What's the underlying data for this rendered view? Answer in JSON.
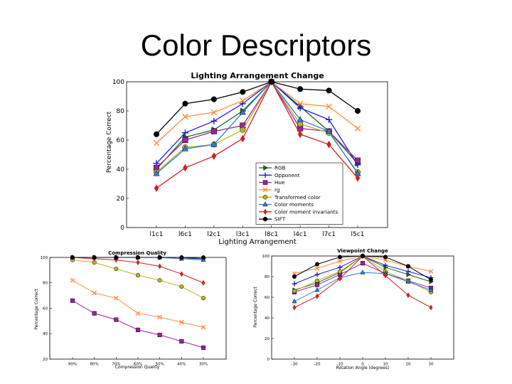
{
  "slide": {
    "title": "Color Descriptors"
  },
  "chart_data": [
    {
      "type": "line",
      "title": "Lighting Arrangement Change",
      "xlabel": "Lighting Arrangement",
      "ylabel": "Percentage Correct",
      "categories": [
        "l1c1",
        "l6c1",
        "l2c1",
        "l3c1",
        "l8c1",
        "l4c1",
        "l7c1",
        "l5c1"
      ],
      "ylim": [
        0,
        100
      ],
      "yticks": [
        0,
        20,
        40,
        60,
        80,
        100
      ],
      "grid": false,
      "legend_position": "lower-right",
      "series": [
        {
          "name": "RGB",
          "color": "#1a6b1a",
          "marker": "tri-right",
          "values": [
            40,
            62,
            67,
            80,
            100,
            83,
            66,
            44
          ]
        },
        {
          "name": "Opponent",
          "color": "#1f1fd0",
          "marker": "plus",
          "values": [
            44,
            65,
            73,
            85,
            100,
            82,
            74,
            43
          ]
        },
        {
          "name": "Hue",
          "color": "#a020a0",
          "marker": "square",
          "values": [
            41,
            60,
            66,
            70,
            100,
            68,
            66,
            46
          ]
        },
        {
          "name": "rg",
          "color": "#ff8c40",
          "marker": "x",
          "values": [
            58,
            76,
            79,
            87,
            100,
            85,
            83,
            68
          ]
        },
        {
          "name": "Transformed color",
          "color": "#b5b520",
          "marker": "circle",
          "values": [
            38,
            55,
            57,
            67,
            100,
            71,
            65,
            38
          ]
        },
        {
          "name": "Color moments",
          "color": "#2f7fd6",
          "marker": "tri-up",
          "values": [
            37,
            54,
            57,
            79,
            100,
            74,
            66,
            37
          ]
        },
        {
          "name": "Color moment invariants",
          "color": "#d02020",
          "marker": "diamond",
          "values": [
            27,
            41,
            49,
            61,
            100,
            64,
            57,
            34
          ]
        },
        {
          "name": "SIFT",
          "color": "#000000",
          "marker": "circle",
          "values": [
            64,
            85,
            88,
            93,
            100,
            95,
            94,
            80
          ]
        }
      ]
    },
    {
      "type": "line",
      "title": "Compression Quality",
      "xlabel": "Compression Quality",
      "ylabel": "Percentage Correct",
      "categories": [
        "90%",
        "80%",
        "70%",
        "60%",
        "50%",
        "40%",
        "30%"
      ],
      "ylim": [
        20,
        100
      ],
      "yticks": [
        20,
        40,
        60,
        80,
        100
      ],
      "series": [
        {
          "name": "RGB",
          "color": "#1a6b1a",
          "marker": "tri-right",
          "values": [
            100,
            100,
            100,
            100,
            100,
            99,
            99
          ]
        },
        {
          "name": "Opponent",
          "color": "#1f1fd0",
          "marker": "plus",
          "values": [
            100,
            100,
            100,
            100,
            100,
            100,
            99
          ]
        },
        {
          "name": "Hue",
          "color": "#a020a0",
          "marker": "square",
          "values": [
            66,
            56,
            51,
            43,
            39,
            34,
            29
          ]
        },
        {
          "name": "rg",
          "color": "#ff8c40",
          "marker": "x",
          "values": [
            82,
            72,
            68,
            56,
            53,
            49,
            45
          ]
        },
        {
          "name": "Transformed color",
          "color": "#b5b520",
          "marker": "circle",
          "values": [
            98,
            96,
            91,
            86,
            82,
            77,
            68
          ]
        },
        {
          "name": "Color moments",
          "color": "#2f7fd6",
          "marker": "tri-up",
          "values": [
            100,
            100,
            100,
            100,
            100,
            99,
            98
          ]
        },
        {
          "name": "Color moment invariants",
          "color": "#d02020",
          "marker": "diamond",
          "values": [
            100,
            99,
            98,
            96,
            93,
            87,
            80
          ]
        },
        {
          "name": "SIFT",
          "color": "#000000",
          "marker": "circle",
          "values": [
            100,
            100,
            100,
            100,
            100,
            100,
            100
          ]
        }
      ]
    },
    {
      "type": "line",
      "title": "Viewpoint Change",
      "xlabel": "Rotation Angle (degrees)",
      "ylabel": "Percentage Correct",
      "categories": [
        "-30",
        "-20",
        "-10",
        "0",
        "10",
        "20",
        "30"
      ],
      "ylim": [
        0,
        100
      ],
      "yticks": [
        0,
        20,
        40,
        60,
        80,
        100
      ],
      "series": [
        {
          "name": "RGB",
          "color": "#1a6b1a",
          "marker": "tri-right",
          "values": [
            67,
            74,
            84,
            100,
            89,
            82,
            75
          ]
        },
        {
          "name": "Opponent",
          "color": "#1f1fd0",
          "marker": "plus",
          "values": [
            73,
            82,
            89,
            100,
            91,
            85,
            79
          ]
        },
        {
          "name": "Hue",
          "color": "#a020a0",
          "marker": "square",
          "values": [
            65,
            72,
            82,
            93,
            83,
            76,
            69
          ]
        },
        {
          "name": "rg",
          "color": "#ff8c40",
          "marker": "x",
          "values": [
            83,
            88,
            95,
            100,
            96,
            90,
            85
          ]
        },
        {
          "name": "Transformed color",
          "color": "#b5b520",
          "marker": "circle",
          "values": [
            66,
            76,
            85,
            100,
            85,
            76,
            65
          ]
        },
        {
          "name": "Color moments",
          "color": "#2f7fd6",
          "marker": "tri-up",
          "values": [
            56,
            67,
            79,
            84,
            83,
            75,
            67
          ]
        },
        {
          "name": "Color moment invariants",
          "color": "#d02020",
          "marker": "diamond",
          "values": [
            50,
            61,
            78,
            100,
            81,
            62,
            50
          ]
        },
        {
          "name": "SIFT",
          "color": "#000000",
          "marker": "circle",
          "values": [
            80,
            92,
            99,
            100,
            99,
            90,
            77
          ]
        }
      ]
    }
  ]
}
